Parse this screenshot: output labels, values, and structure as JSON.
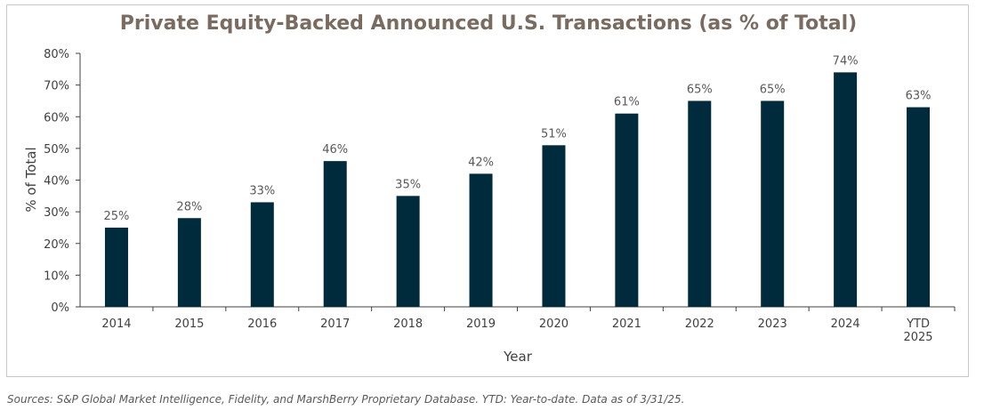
{
  "chart_data": {
    "type": "bar",
    "title": "Private Equity-Backed Announced U.S. Transactions (as % of Total)",
    "xlabel": "Year",
    "ylabel": "% of Total",
    "categories": [
      "2014",
      "2015",
      "2016",
      "2017",
      "2018",
      "2019",
      "2020",
      "2021",
      "2022",
      "2023",
      "2024",
      "YTD 2025"
    ],
    "values": [
      25,
      28,
      33,
      46,
      35,
      42,
      51,
      61,
      65,
      65,
      74,
      63
    ],
    "data_labels": [
      "25%",
      "28%",
      "33%",
      "46%",
      "35%",
      "42%",
      "51%",
      "61%",
      "65%",
      "65%",
      "74%",
      "63%"
    ],
    "ylim": [
      0,
      80
    ],
    "yticks": [
      "0%",
      "10%",
      "20%",
      "30%",
      "40%",
      "50%",
      "60%",
      "70%",
      "80%"
    ],
    "bar_color": "#002b3c",
    "grid": false,
    "legend": "none"
  },
  "source_note": "Sources: S&P Global Market Intelligence, Fidelity, and MarshBerry Proprietary Database. YTD: Year-to-date. Data as of 3/31/25."
}
